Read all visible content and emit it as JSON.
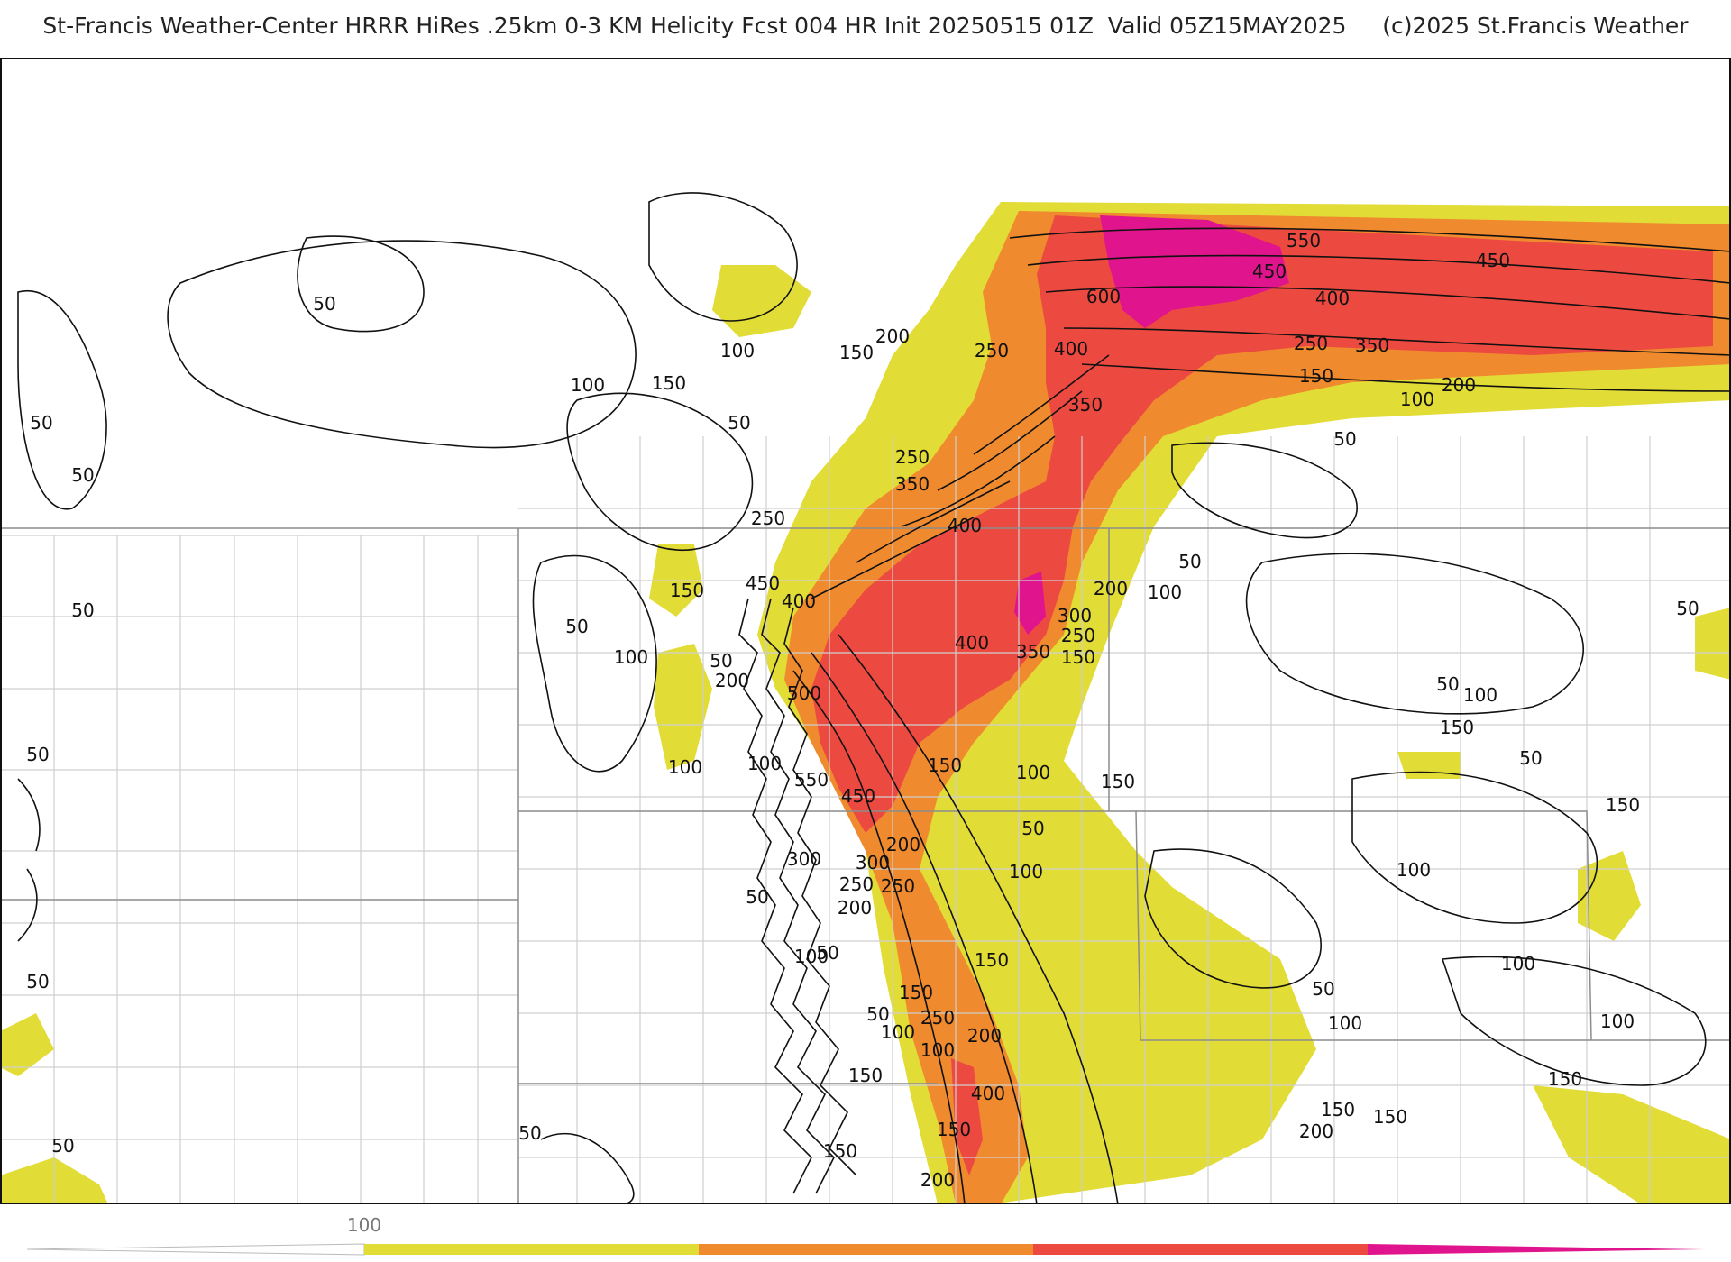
{
  "title": "St-Francis Weather-Center HRRR HiRes .25km 0-3 KM Helicity Fcst 004 HR Init 20250515 01Z  Valid 05Z15MAY2025     (c)2025 St.Francis Weather",
  "colors": {
    "level_100": "#e2dc36",
    "level_200": "#ef8a2e",
    "level_400": "#ec4a40",
    "level_600": "#e0148c",
    "contour": "#111111",
    "border": "#8c8c8c",
    "county": "#cfcfcf"
  },
  "colorbar": {
    "tick_label": "100",
    "segments": [
      "level_100",
      "level_200",
      "level_400",
      "level_600"
    ]
  },
  "contour_labels": [
    "50",
    "100",
    "150",
    "200",
    "250",
    "300",
    "350",
    "400",
    "450",
    "500",
    "550",
    "600"
  ]
}
